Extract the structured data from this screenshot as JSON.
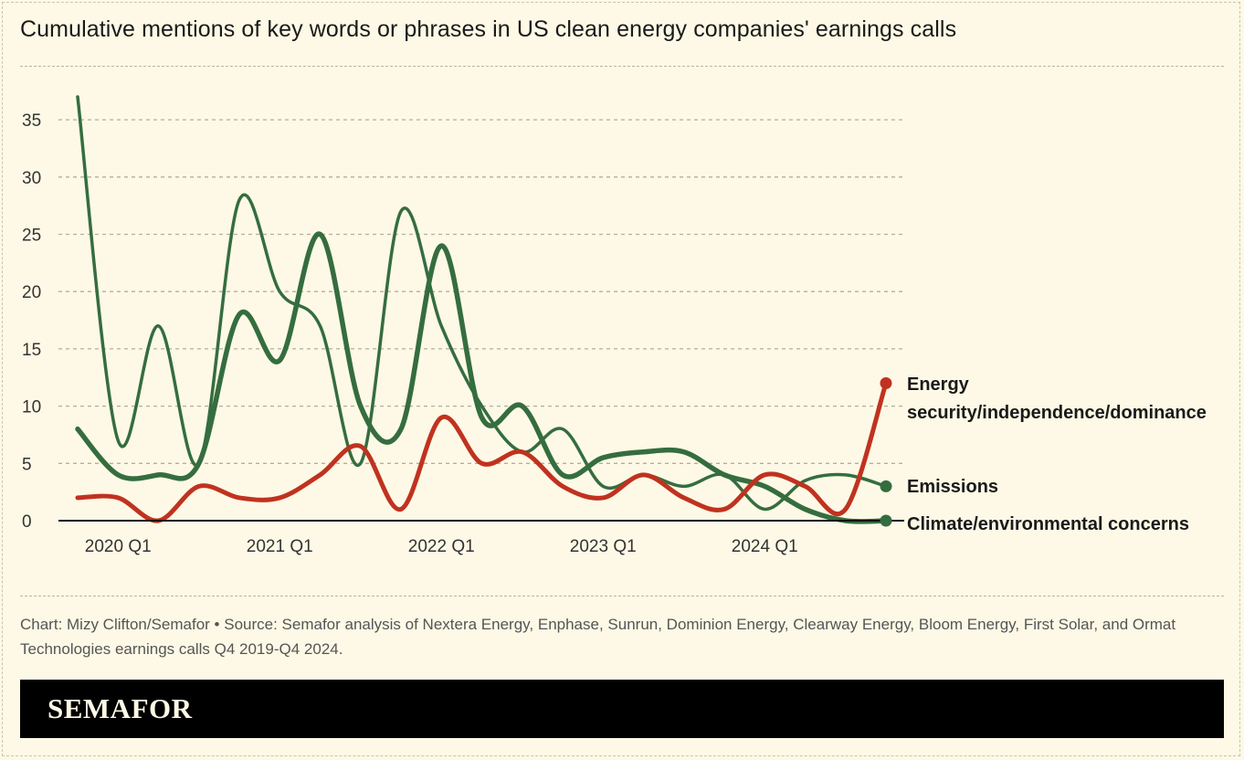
{
  "title": "Cumulative mentions of key words or phrases in US clean energy companies' earnings calls",
  "source": "Chart: Mizy Clifton/Semafor • Source: Semafor analysis of Nextera Energy, Enphase, Sunrun, Dominion Energy, Clearway Energy, Bloom Energy, First Solar, and Ormat Technologies earnings calls Q4 2019-Q4 2024.",
  "brand": "SEMAFOR",
  "chart_data": {
    "type": "line",
    "title": "Cumulative mentions of key words or phrases in US clean energy companies' earnings calls",
    "xlabel": "",
    "ylabel": "",
    "x": [
      "2019 Q4",
      "2020 Q1",
      "2020 Q2",
      "2020 Q3",
      "2020 Q4",
      "2021 Q1",
      "2021 Q2",
      "2021 Q3",
      "2021 Q4",
      "2022 Q1",
      "2022 Q2",
      "2022 Q3",
      "2022 Q4",
      "2023 Q1",
      "2023 Q2",
      "2023 Q3",
      "2023 Q4",
      "2024 Q1",
      "2024 Q2",
      "2024 Q3",
      "2024 Q4"
    ],
    "x_tick_labels": [
      "2020 Q1",
      "2021 Q1",
      "2022 Q1",
      "2023 Q1",
      "2024 Q1"
    ],
    "x_tick_indices": [
      1,
      5,
      9,
      13,
      17
    ],
    "y_ticks": [
      0,
      5,
      10,
      15,
      20,
      25,
      30,
      35
    ],
    "ylim": [
      0,
      37
    ],
    "grid": true,
    "legend": "direct labels at right end",
    "series": [
      {
        "name": "Energy security/independence/dominance",
        "label_lines": [
          "Energy",
          "security/independence/dominance"
        ],
        "color": "#c0321f",
        "width": 5,
        "values": [
          2,
          2,
          0,
          3,
          2,
          2,
          4,
          6.5,
          1,
          9,
          5,
          6,
          3,
          2,
          4,
          2,
          1,
          4,
          3,
          1,
          12
        ]
      },
      {
        "name": "Emissions",
        "color": "#356d3f",
        "width": 3.5,
        "values": [
          37,
          7,
          17,
          5,
          28,
          20,
          17,
          5,
          27,
          17,
          10,
          6,
          8,
          3,
          4,
          3,
          4,
          1,
          3.5,
          4,
          3
        ]
      },
      {
        "name": "Climate/environmental concerns",
        "color": "#356d3f",
        "width": 5.5,
        "values": [
          8,
          4,
          4,
          5,
          18,
          14,
          25,
          10,
          8,
          24,
          9,
          10,
          4,
          5.5,
          6,
          6,
          4,
          3,
          1,
          0,
          0
        ]
      }
    ]
  }
}
